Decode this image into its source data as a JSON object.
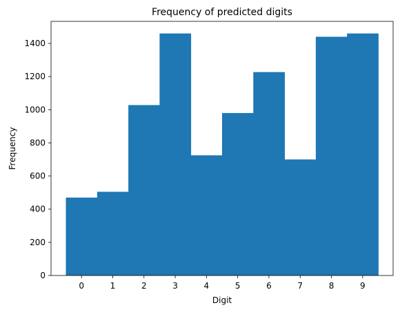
{
  "chart_data": {
    "type": "bar",
    "title": "Frequency of predicted digits",
    "xlabel": "Digit",
    "ylabel": "Frequency",
    "categories": [
      "0",
      "1",
      "2",
      "3",
      "4",
      "5",
      "6",
      "7",
      "8",
      "9"
    ],
    "values": [
      470,
      505,
      1028,
      1460,
      725,
      980,
      1227,
      700,
      1440,
      1460
    ],
    "ylim": [
      0,
      1533
    ],
    "yticks": [
      0,
      200,
      400,
      600,
      800,
      1000,
      1200,
      1400
    ],
    "bar_color": "#1f77b4",
    "grid": false,
    "legend": "none"
  }
}
